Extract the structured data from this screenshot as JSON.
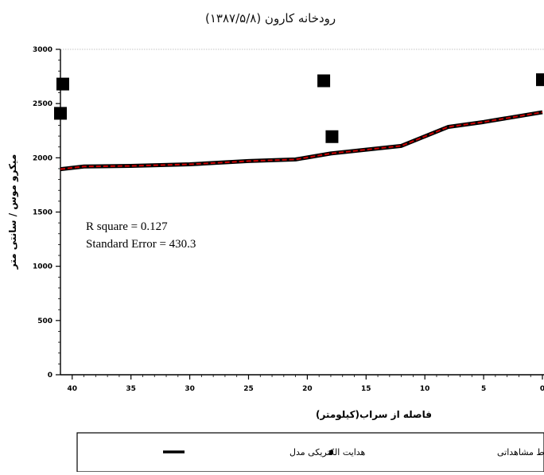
{
  "chart_data": {
    "type": "line",
    "title": "رودخانه کارون  (۱۳۸۷/۵/۸)",
    "xlabel": "فاصله از سراب(کیلومتر)",
    "ylabel": "میکرو موس / سانتی متر",
    "xlim": [
      41,
      0
    ],
    "x_reversed": true,
    "ylim": [
      0,
      3000
    ],
    "x_ticks": [
      40,
      35,
      30,
      25,
      20,
      15,
      10,
      5,
      0
    ],
    "y_ticks": [
      0,
      500,
      1000,
      1500,
      2000,
      2500,
      3000
    ],
    "grid": false,
    "legend_position": "bottom",
    "series": [
      {
        "name": "هدایت الکتریکی مدل",
        "kind": "line",
        "color": "#cc0000",
        "x": [
          41,
          39,
          35,
          30,
          25,
          21,
          18,
          12,
          8,
          5,
          0
        ],
        "y": [
          1895,
          1920,
          1925,
          1940,
          1970,
          1985,
          2040,
          2110,
          2285,
          2330,
          2420
        ]
      },
      {
        "name": "هدایت الکتریکی  نقاط مشاهداتی",
        "kind": "scatter",
        "color": "#000000",
        "x": [
          40.8,
          41,
          18.6,
          17.9,
          0
        ],
        "y": [
          2680,
          2410,
          2710,
          2195,
          2720
        ]
      }
    ],
    "annotations": [
      "R square =  0.127",
      "Standard Error = 430.3"
    ]
  }
}
